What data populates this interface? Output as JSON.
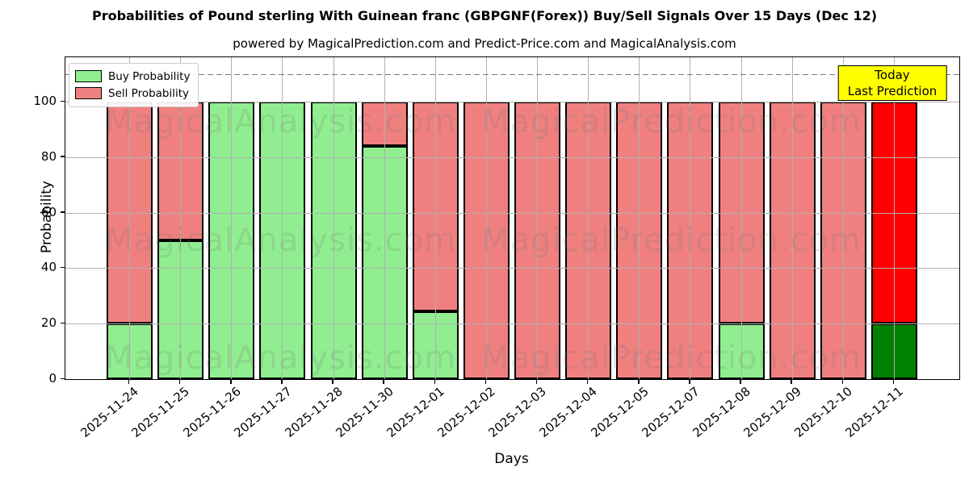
{
  "figure": {
    "title": "Probabilities of Pound sterling With Guinean franc (GBPGNF(Forex)) Buy/Sell Signals Over 15 Days (Dec 12)",
    "subtitle": "powered by MagicalPrediction.com and Predict-Price.com and MagicalAnalysis.com"
  },
  "axes": {
    "x_label": "Days",
    "y_label": "Probability"
  },
  "legend": {
    "items": [
      {
        "label": "Buy Probability",
        "color": "#90EE90"
      },
      {
        "label": "Sell Probability",
        "color": "#F08080"
      }
    ]
  },
  "annotation": {
    "line1": "Today",
    "line2": "Last Prediction",
    "bg_color": "#ffff00"
  },
  "watermarks": {
    "left": "MagicalAnalysis.com",
    "right": "MagicalPrediction.com"
  },
  "chart_data": {
    "type": "bar",
    "stacked": true,
    "title": "Probabilities of Pound sterling With Guinean franc (GBPGNF(Forex)) Buy/Sell Signals Over 15 Days (Dec 12)",
    "xlabel": "Days",
    "ylabel": "Probability",
    "categories": [
      "2025-11-24",
      "2025-11-25",
      "2025-11-26",
      "2025-11-27",
      "2025-11-28",
      "2025-11-30",
      "2025-12-01",
      "2025-12-02",
      "2025-12-03",
      "2025-12-04",
      "2025-12-05",
      "2025-12-07",
      "2025-12-08",
      "2025-12-09",
      "2025-12-10",
      "2025-12-11"
    ],
    "series": [
      {
        "name": "Buy Probability",
        "color": "#90EE90",
        "today_color": "#008000",
        "values": [
          20,
          50,
          100,
          100,
          100,
          84,
          24.5,
          0,
          0,
          0,
          0,
          0,
          20,
          0,
          0,
          20
        ]
      },
      {
        "name": "Sell Probability",
        "color": "#F08080",
        "today_color": "#FF0000",
        "values": [
          80,
          50,
          0,
          0,
          0,
          16,
          75.5,
          100,
          100,
          100,
          100,
          100,
          80,
          100,
          100,
          80
        ]
      }
    ],
    "today_index": 15,
    "ylim": [
      0,
      116
    ],
    "yticks": [
      0,
      20,
      40,
      60,
      80,
      100
    ],
    "dashed_line_y": 110,
    "grid": true,
    "legend_position": "upper left",
    "bar_edge_color": "#000000",
    "grid_color": "#b0b0b0"
  }
}
